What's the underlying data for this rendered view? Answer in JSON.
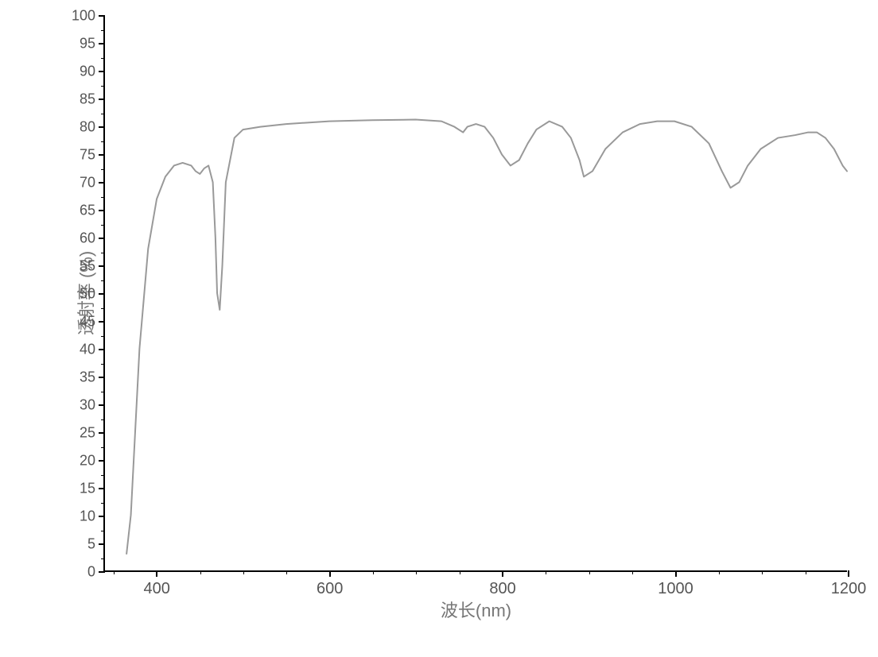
{
  "chart": {
    "type": "line",
    "xlabel": "波长(nm)",
    "ylabel": "透射率 (%)",
    "xlim": [
      340,
      1200
    ],
    "ylim": [
      0,
      100
    ],
    "x_major_ticks": [
      400,
      600,
      800,
      1000,
      1200
    ],
    "x_minor_step": 50,
    "y_major_ticks": [
      0,
      5,
      10,
      15,
      20,
      25,
      30,
      35,
      40,
      45,
      50,
      55,
      60,
      65,
      70,
      75,
      80,
      85,
      90,
      95,
      100
    ],
    "y_minor_step": 2.5,
    "tick_label_color": "#555555",
    "axis_label_color": "#777777",
    "tick_label_fontsize": 18,
    "axis_label_fontsize": 22,
    "line_color": "#999999",
    "line_width": 2,
    "background_color": "#ffffff",
    "axis_color": "#000000",
    "series": {
      "x": [
        365,
        370,
        375,
        380,
        390,
        400,
        410,
        420,
        430,
        440,
        445,
        450,
        455,
        460,
        465,
        468,
        470,
        473,
        476,
        480,
        490,
        500,
        520,
        550,
        600,
        650,
        700,
        730,
        745,
        755,
        760,
        770,
        780,
        790,
        800,
        810,
        820,
        830,
        840,
        855,
        870,
        880,
        890,
        895,
        905,
        920,
        940,
        960,
        980,
        1000,
        1020,
        1040,
        1055,
        1065,
        1075,
        1085,
        1100,
        1120,
        1140,
        1155,
        1165,
        1175,
        1185,
        1195,
        1200
      ],
      "y": [
        3,
        10,
        25,
        40,
        58,
        67,
        71,
        73,
        73.5,
        73,
        72,
        71.5,
        72.5,
        73,
        70,
        60,
        50,
        47,
        55,
        70,
        78,
        79.5,
        80,
        80.5,
        81,
        81.2,
        81.3,
        81,
        80,
        79,
        80,
        80.5,
        80,
        78,
        75,
        73,
        74,
        77,
        79.5,
        81,
        80,
        78,
        74,
        71,
        72,
        76,
        79,
        80.5,
        81,
        81,
        80,
        77,
        72,
        69,
        70,
        73,
        76,
        78,
        78.5,
        79,
        79,
        78,
        76,
        73,
        72
      ]
    }
  }
}
